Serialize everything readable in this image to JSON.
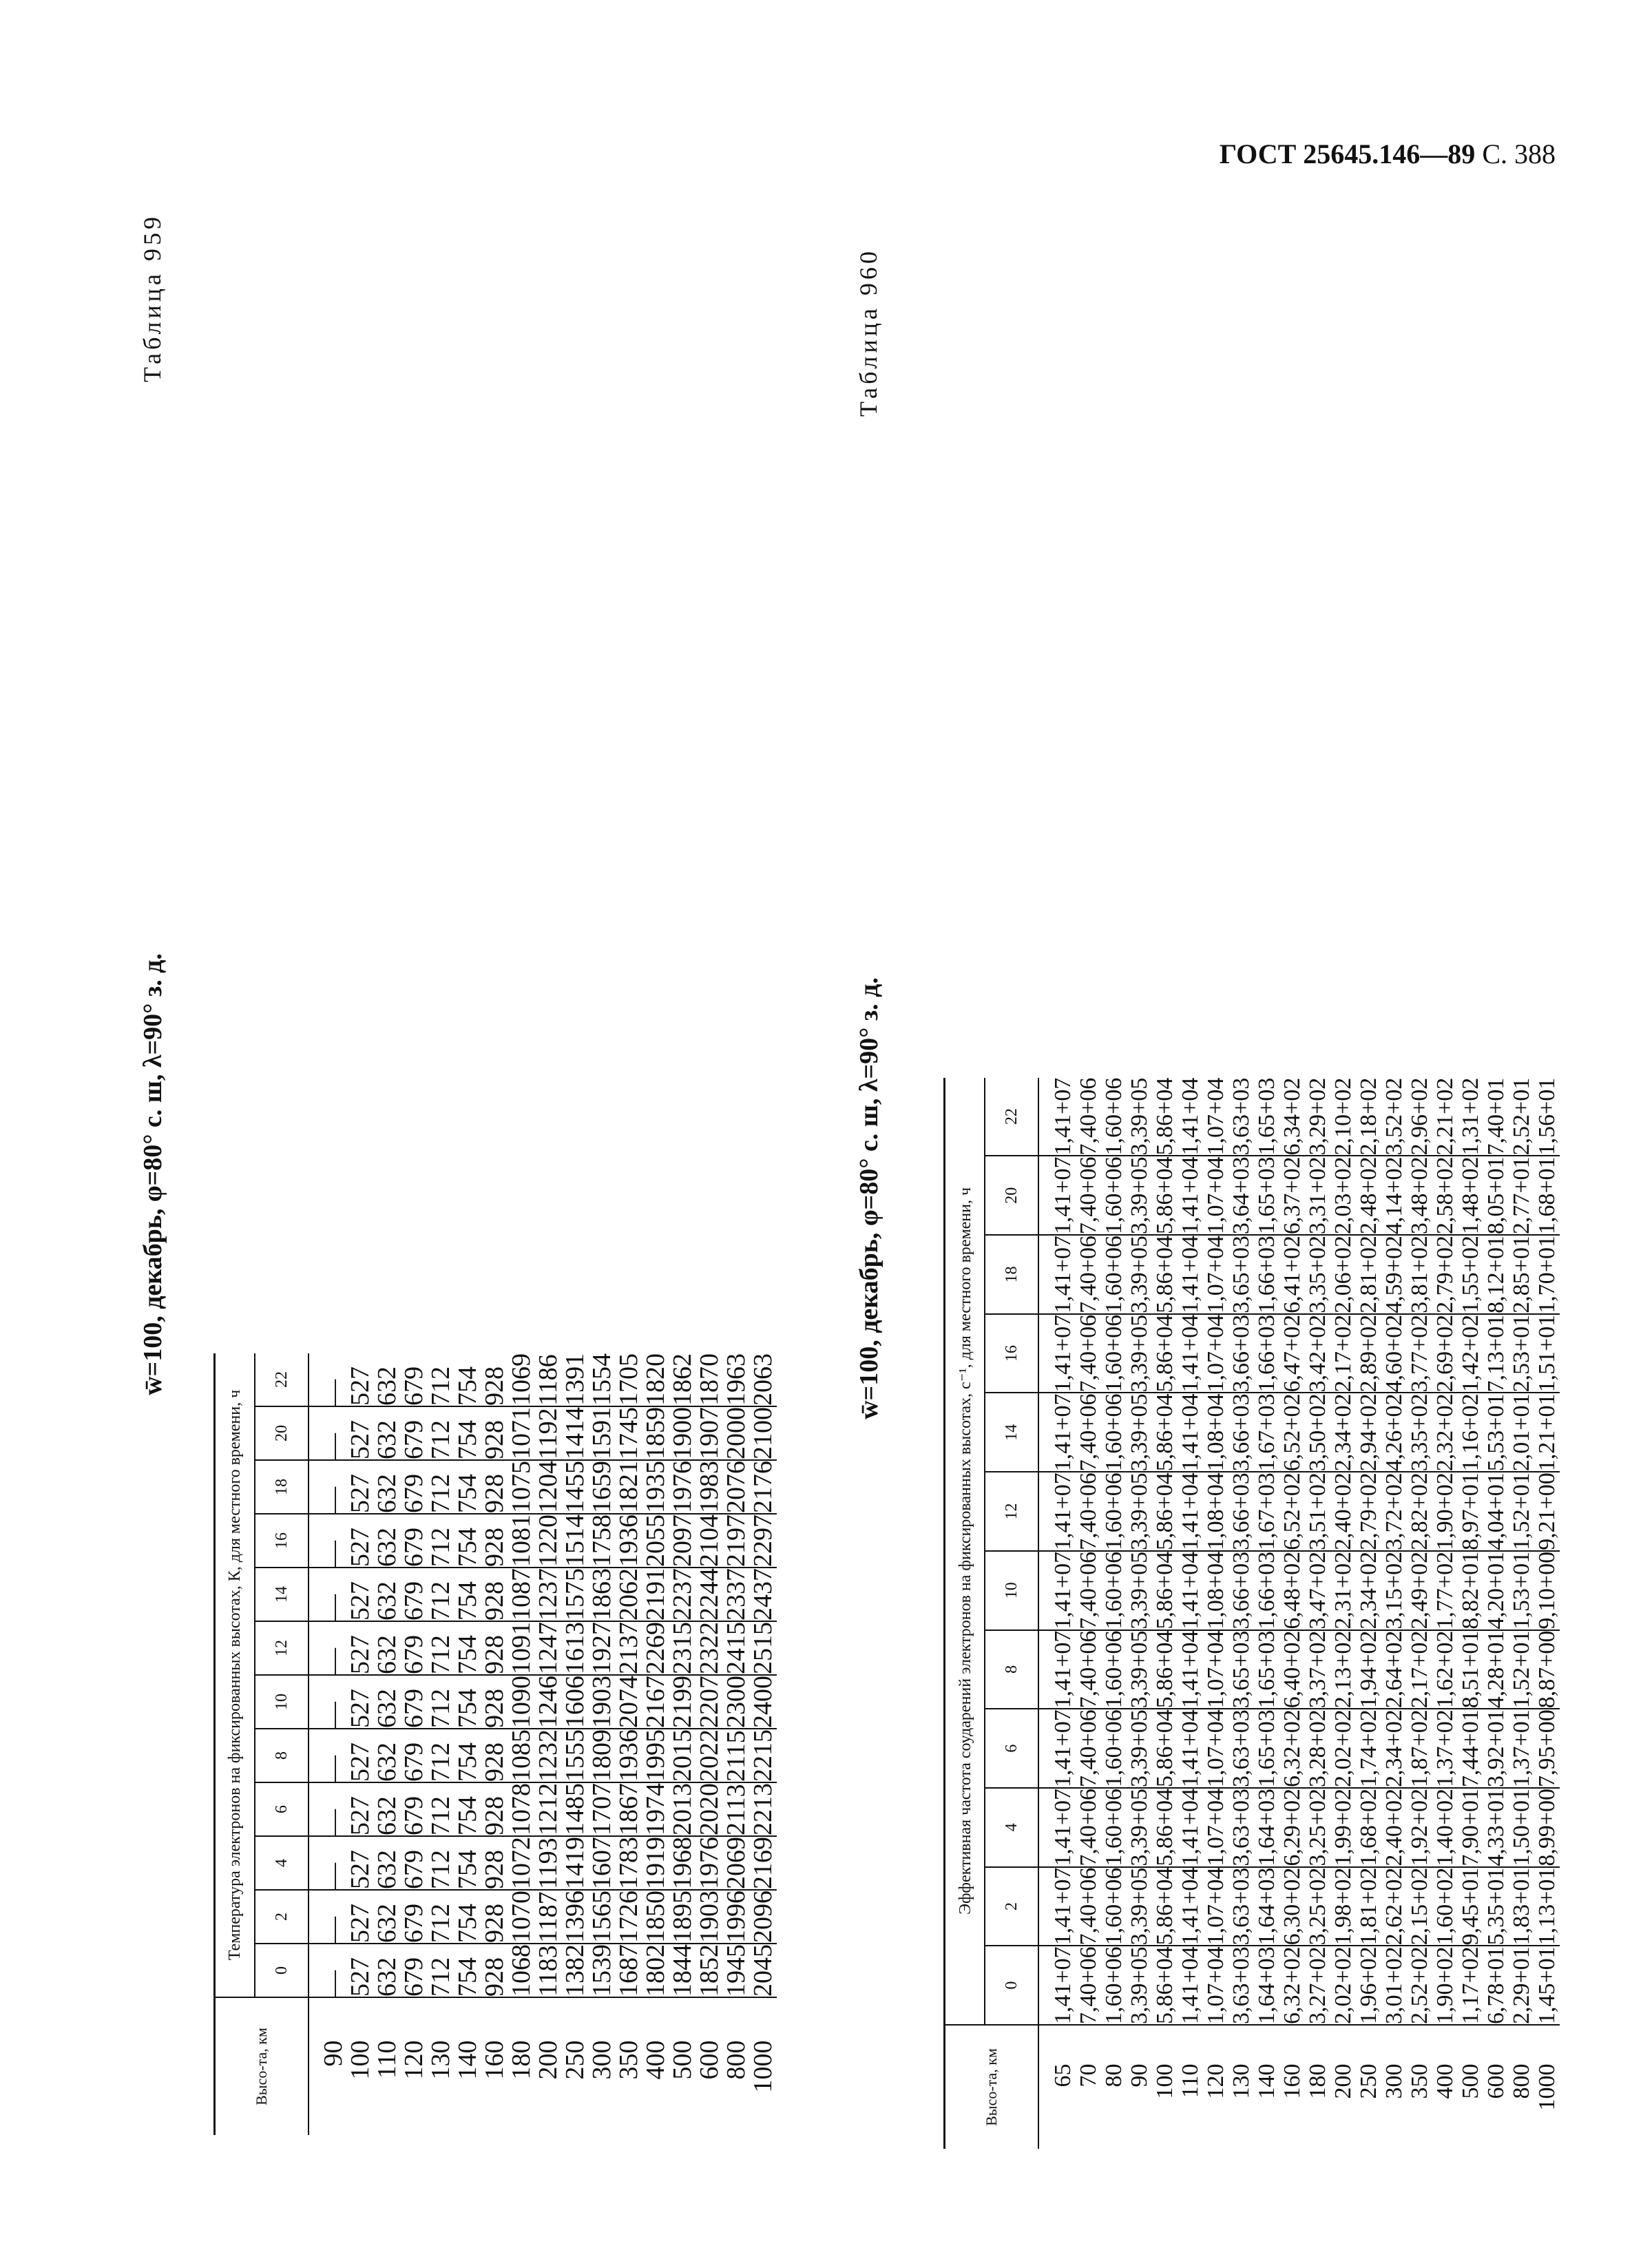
{
  "header": {
    "doc": "ГОСТ 25645.146—89",
    "page": "С. 388"
  },
  "table959": {
    "number": "Таблица 959",
    "title": "w̄=100, декабрь, φ=80° с. ш, λ=90° з. д.",
    "alt_header": "Высо-та, км",
    "group_header": "Температура электронов на фиксированных высотах, К, для местного времени, ч",
    "hours": [
      "0",
      "2",
      "4",
      "6",
      "8",
      "10",
      "12",
      "14",
      "16",
      "18",
      "20",
      "22"
    ],
    "altitudes": [
      "90",
      "100",
      "110",
      "120",
      "130",
      "140",
      "160",
      "180",
      "200",
      "250",
      "300",
      "350",
      "400",
      "500",
      "600",
      "800",
      "1000"
    ],
    "columns": [
      [
        "—",
        "527",
        "632",
        "679",
        "712",
        "754",
        "928",
        "1068",
        "1183",
        "1382",
        "1539",
        "1687",
        "1802",
        "1844",
        "1852",
        "1945",
        "2045"
      ],
      [
        "—",
        "527",
        "632",
        "679",
        "712",
        "754",
        "928",
        "1070",
        "1187",
        "1396",
        "1565",
        "1726",
        "1850",
        "1895",
        "1903",
        "1996",
        "2096"
      ],
      [
        "—",
        "527",
        "632",
        "679",
        "712",
        "754",
        "928",
        "1072",
        "1193",
        "1419",
        "1607",
        "1783",
        "1919",
        "1968",
        "1976",
        "2069",
        "2169"
      ],
      [
        "—",
        "527",
        "632",
        "679",
        "712",
        "754",
        "928",
        "1078",
        "1212",
        "1485",
        "1707",
        "1867",
        "1974",
        "2013",
        "2020",
        "2113",
        "2213"
      ],
      [
        "—",
        "527",
        "632",
        "679",
        "712",
        "754",
        "928",
        "1085",
        "1232",
        "1555",
        "1809",
        "1936",
        "1995",
        "2015",
        "2022",
        "2115",
        "2215"
      ],
      [
        "—",
        "527",
        "632",
        "679",
        "712",
        "754",
        "928",
        "1090",
        "1246",
        "1606",
        "1903",
        "2074",
        "2167",
        "2199",
        "2207",
        "2300",
        "2400"
      ],
      [
        "—",
        "527",
        "632",
        "679",
        "712",
        "754",
        "928",
        "1091",
        "1247",
        "1613",
        "1927",
        "2137",
        "2269",
        "2315",
        "2322",
        "2415",
        "2515"
      ],
      [
        "—",
        "527",
        "632",
        "679",
        "712",
        "754",
        "928",
        "1087",
        "1237",
        "1575",
        "1863",
        "2062",
        "2191",
        "2237",
        "2244",
        "2337",
        "2437"
      ],
      [
        "—",
        "527",
        "632",
        "679",
        "712",
        "754",
        "928",
        "1081",
        "1220",
        "1514",
        "1758",
        "1936",
        "2055",
        "2097",
        "2104",
        "2197",
        "2297"
      ],
      [
        "—",
        "527",
        "632",
        "679",
        "712",
        "754",
        "928",
        "1075",
        "1204",
        "1455",
        "1659",
        "1821",
        "1935",
        "1976",
        "1983",
        "2076",
        "2176"
      ],
      [
        "—",
        "527",
        "632",
        "679",
        "712",
        "754",
        "928",
        "1071",
        "1192",
        "1414",
        "1591",
        "1745",
        "1859",
        "1900",
        "1907",
        "2000",
        "2100"
      ],
      [
        "—",
        "527",
        "632",
        "679",
        "712",
        "754",
        "928",
        "1069",
        "1186",
        "1391",
        "1554",
        "1705",
        "1820",
        "1862",
        "1870",
        "1963",
        "2063"
      ]
    ]
  },
  "table960": {
    "number": "Таблица 960",
    "title": "w̄=100, декабрь, φ=80° с. ш, λ=90° з. д.",
    "alt_header": "Высо-та, км",
    "group_header": "Эффективная частота соударений электронов на фиксированных высотах, с⁻¹, для местного времени, ч",
    "hours": [
      "0",
      "2",
      "4",
      "6",
      "8",
      "10",
      "12",
      "14",
      "16",
      "18",
      "20",
      "22"
    ],
    "altitudes": [
      "65",
      "70",
      "80",
      "90",
      "100",
      "110",
      "120",
      "130",
      "140",
      "160",
      "180",
      "200",
      "250",
      "300",
      "350",
      "400",
      "500",
      "600",
      "800",
      "1000"
    ],
    "columns": [
      [
        "1,41+07",
        "7,40+06",
        "1,60+06",
        "3,39+05",
        "5,86+04",
        "1,41+04",
        "1,07+04",
        "3,63+03",
        "1,64+03",
        "6,32+02",
        "3,27+02",
        "2,02+02",
        "1,96+02",
        "3,01+02",
        "2,52+02",
        "1,90+02",
        "1,17+02",
        "6,78+01",
        "2,29+01",
        "1,45+01"
      ],
      [
        "1,41+07",
        "7,40+06",
        "1,60+06",
        "3,39+05",
        "5,86+04",
        "1,41+04",
        "1,07+04",
        "3,63+03",
        "1,64+03",
        "6,30+02",
        "3,25+02",
        "1,98+02",
        "1,81+02",
        "2,62+02",
        "2,15+02",
        "1,60+02",
        "9,45+01",
        "5,35+01",
        "1,83+01",
        "1,13+01"
      ],
      [
        "1,41+07",
        "7,40+06",
        "1,60+06",
        "3,39+05",
        "5,86+04",
        "1,41+04",
        "1,07+04",
        "3,63+03",
        "1,64+03",
        "6,29+02",
        "3,25+02",
        "1,99+02",
        "1,68+02",
        "2,40+02",
        "1,92+02",
        "1,40+02",
        "7,90+01",
        "4,33+01",
        "1,50+01",
        "8,99+00"
      ],
      [
        "1,41+07",
        "7,40+06",
        "1,60+06",
        "3,39+05",
        "5,86+04",
        "1,41+04",
        "1,07+04",
        "3,63+03",
        "1,65+03",
        "6,32+02",
        "3,28+02",
        "2,02+02",
        "1,74+02",
        "2,34+02",
        "1,87+02",
        "1,37+02",
        "7,44+01",
        "3,92+01",
        "1,37+01",
        "7,95+00"
      ],
      [
        "1,41+07",
        "7,40+06",
        "1,60+06",
        "3,39+05",
        "5,86+04",
        "1,41+04",
        "1,07+04",
        "3,65+03",
        "1,65+03",
        "6,40+02",
        "3,37+02",
        "2,13+02",
        "1,94+02",
        "2,64+02",
        "2,17+02",
        "1,62+02",
        "8,51+01",
        "4,28+01",
        "1,52+01",
        "8,87+00"
      ],
      [
        "1,41+07",
        "7,40+06",
        "1,60+06",
        "3,39+05",
        "5,86+04",
        "1,41+04",
        "1,08+04",
        "3,66+03",
        "1,66+03",
        "6,48+02",
        "3,47+02",
        "2,31+02",
        "2,34+02",
        "3,15+02",
        "2,49+02",
        "1,77+02",
        "8,82+01",
        "4,20+01",
        "1,53+01",
        "9,10+00"
      ],
      [
        "1,41+07",
        "7,40+06",
        "1,60+06",
        "3,39+05",
        "5,86+04",
        "1,41+04",
        "1,08+04",
        "3,66+03",
        "1,67+03",
        "6,52+02",
        "3,51+02",
        "2,40+02",
        "2,79+02",
        "3,72+02",
        "2,82+02",
        "1,90+02",
        "8,97+01",
        "4,04+01",
        "1,52+01",
        "9,21+00"
      ],
      [
        "1,41+07",
        "7,40+06",
        "1,60+06",
        "3,39+05",
        "5,86+04",
        "1,41+04",
        "1,08+04",
        "3,66+03",
        "1,67+03",
        "6,52+02",
        "3,50+02",
        "2,34+02",
        "2,94+02",
        "4,26+02",
        "3,35+02",
        "2,32+02",
        "1,16+02",
        "5,53+01",
        "2,01+01",
        "1,21+01"
      ],
      [
        "1,41+07",
        "7,40+06",
        "1,60+06",
        "3,39+05",
        "5,86+04",
        "1,41+04",
        "1,07+04",
        "3,66+03",
        "1,66+03",
        "6,47+02",
        "3,42+02",
        "2,17+02",
        "2,89+02",
        "4,60+02",
        "3,77+02",
        "2,69+02",
        "1,42+02",
        "7,13+01",
        "2,53+01",
        "1,51+01"
      ],
      [
        "1,41+07",
        "7,40+06",
        "1,60+06",
        "3,39+05",
        "5,86+04",
        "1,41+04",
        "1,07+04",
        "3,65+03",
        "1,66+03",
        "6,41+02",
        "3,35+02",
        "2,06+02",
        "2,81+02",
        "4,59+02",
        "3,81+02",
        "2,79+02",
        "1,55+02",
        "8,12+01",
        "2,85+01",
        "1,70+01"
      ],
      [
        "1,41+07",
        "7,40+06",
        "1,60+06",
        "3,39+05",
        "5,86+04",
        "1,41+04",
        "1,07+04",
        "3,64+03",
        "1,65+03",
        "6,37+02",
        "3,31+02",
        "2,03+02",
        "2,48+02",
        "4,14+02",
        "3,48+02",
        "2,58+02",
        "1,48+02",
        "8,05+01",
        "2,77+01",
        "1,68+01"
      ],
      [
        "1,41+07",
        "7,40+06",
        "1,60+06",
        "3,39+05",
        "5,86+04",
        "1,41+04",
        "1,07+04",
        "3,63+03",
        "1,65+03",
        "6,34+02",
        "3,29+02",
        "2,10+02",
        "2,18+02",
        "3,52+02",
        "2,96+02",
        "2,21+02",
        "1,31+02",
        "7,40+01",
        "2,52+01",
        "1,56+01"
      ]
    ]
  }
}
